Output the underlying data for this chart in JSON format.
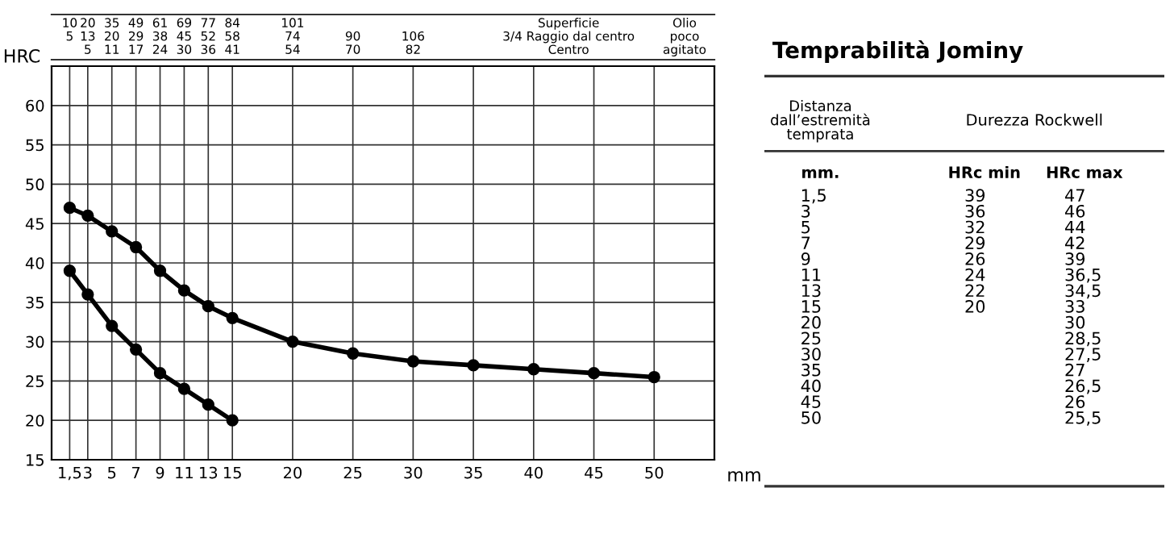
{
  "chart_data": [
    {
      "type": "line",
      "xlabel": "mm",
      "ylabel": "HRC",
      "series": [
        {
          "color": "#000000",
          "x": [
            1.5,
            3,
            5,
            7,
            9,
            11,
            13,
            15
          ],
          "values": [
            39,
            36,
            32,
            29,
            26,
            24,
            22,
            20
          ]
        },
        {
          "color": "#000000",
          "x": [
            1.5,
            3,
            5,
            7,
            9,
            11,
            13,
            15,
            20,
            25,
            30,
            35,
            40,
            45,
            50
          ],
          "values": [
            47,
            46,
            44,
            42,
            39,
            36.5,
            34.5,
            33,
            30,
            28.5,
            27.5,
            27,
            26.5,
            26,
            25.5
          ]
        }
      ],
      "xlim": [
        0,
        55
      ],
      "ylim": [
        15,
        65
      ],
      "xticks": [
        {
          "value": 1.5,
          "label": "1,5"
        },
        3,
        5,
        7,
        9,
        11,
        13,
        15,
        20,
        25,
        30,
        35,
        40,
        45,
        50
      ],
      "yticks": [
        15,
        20,
        25,
        30,
        35,
        40,
        45,
        50,
        55,
        60
      ],
      "annotations": [
        "10\n5\n ",
        "20\n13\n5",
        "35\n20\n11",
        "49\n29\n17",
        "61\n38\n24",
        "69\n45\n30",
        "77\n52\n36",
        "84\n58\n41",
        "101\n74\n54",
        " \n90\n70",
        " \n106\n82",
        "Superficie\n3/4 Raggio dal centro\nCentro",
        "Olio\npoco\nagitato"
      ],
      "grid": true,
      "legend": false,
      "marker": "circle",
      "line_style": "solid"
    },
    {
      "type": "other",
      "title": "Temprabilità Jominy",
      "annotations": [
        "Distanza\ndall’estremità\ntemprata",
        "Durezza Rockwell",
        "mm.",
        "HRc min",
        "HRc max",
        "1,5\n3\n5\n7\n9\n11\n13\n15\n20\n25\n30\n35\n40\n45\n50",
        "39\n36\n32\n29\n26\n24\n22\n20",
        "47\n46\n44\n42\n39\n36,5\n34,5\n33\n30\n28,5\n27,5\n27\n26,5\n26\n25,5"
      ]
    }
  ]
}
